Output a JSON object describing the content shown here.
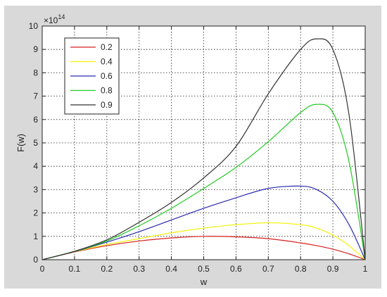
{
  "chart_data": {
    "type": "line",
    "xlabel": "w",
    "ylabel": "F(w)",
    "exponent_label": "×10",
    "exponent_power": "14",
    "xlim": [
      0,
      1
    ],
    "ylim": [
      0,
      10
    ],
    "y_scale": 100000000000000.0,
    "grid": "on (dotted)",
    "legend_position": "top-left",
    "x_ticks": [
      "0",
      "0.1",
      "0.2",
      "0.3",
      "0.4",
      "0.5",
      "0.6",
      "0.7",
      "0.8",
      "0.9",
      "1"
    ],
    "y_ticks": [
      "0",
      "1",
      "2",
      "3",
      "4",
      "5",
      "6",
      "7",
      "8",
      "9",
      "10"
    ],
    "x": [
      0,
      0.1,
      0.2,
      0.3,
      0.4,
      0.5,
      0.6,
      0.7,
      0.8,
      0.85,
      0.9,
      0.95,
      1.0
    ],
    "series": [
      {
        "name": "0.2",
        "color": "#d62020",
        "values": [
          0,
          0.33,
          0.6,
          0.8,
          0.93,
          1.0,
          0.98,
          0.9,
          0.72,
          0.6,
          0.45,
          0.25,
          0
        ]
      },
      {
        "name": "0.4",
        "color": "#f2f200",
        "values": [
          0,
          0.34,
          0.65,
          0.9,
          1.15,
          1.35,
          1.5,
          1.58,
          1.5,
          1.35,
          1.05,
          0.6,
          0
        ]
      },
      {
        "name": "0.6",
        "color": "#2a2ab0",
        "values": [
          0,
          0.35,
          0.75,
          1.2,
          1.7,
          2.2,
          2.65,
          3.05,
          3.15,
          3.0,
          2.5,
          1.5,
          0
        ]
      },
      {
        "name": "0.8",
        "color": "#22cc22",
        "values": [
          0,
          0.36,
          0.8,
          1.45,
          2.2,
          3.05,
          3.95,
          5.05,
          6.3,
          6.65,
          6.3,
          4.2,
          0
        ]
      },
      {
        "name": "0.9",
        "color": "#333333",
        "values": [
          0,
          0.36,
          0.85,
          1.6,
          2.45,
          3.5,
          4.85,
          7.1,
          9.0,
          9.45,
          9.0,
          6.2,
          0
        ]
      }
    ]
  }
}
